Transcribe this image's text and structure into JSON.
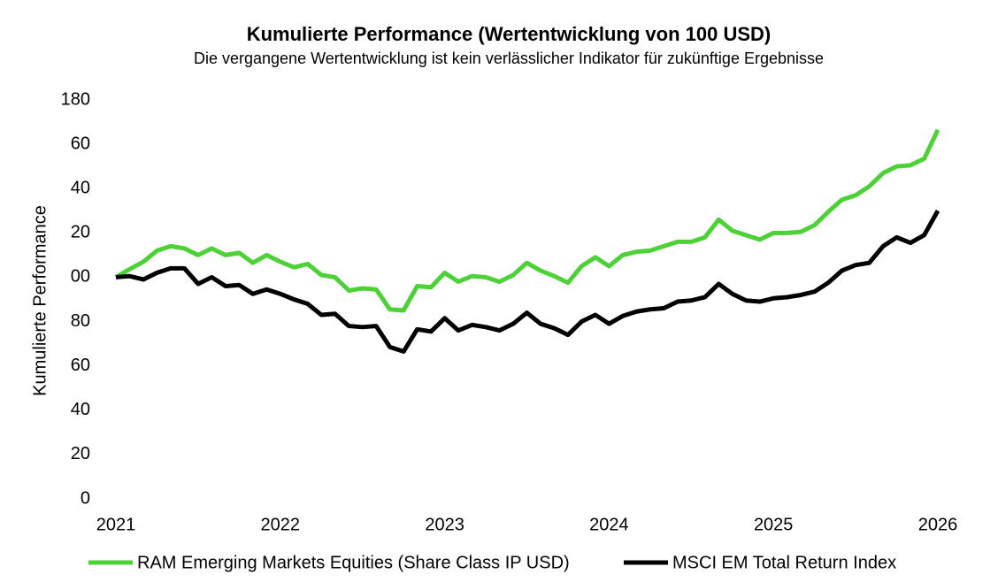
{
  "chart_data": {
    "type": "line",
    "title": "Kumulierte Performance (Wertentwicklung von 100 USD)",
    "subtitle": "Die vergangene Wertentwicklung ist kein verlässlicher Indikator für zukünftige Ergebnisse",
    "y_label": "Kumulierte Performance",
    "x": [
      2021,
      2021.083,
      2021.167,
      2021.25,
      2021.333,
      2021.417,
      2021.5,
      2021.583,
      2021.667,
      2021.75,
      2021.833,
      2021.917,
      2022,
      2022.083,
      2022.167,
      2022.25,
      2022.333,
      2022.417,
      2022.5,
      2022.583,
      2022.667,
      2022.75,
      2022.833,
      2022.917,
      2023,
      2023.083,
      2023.167,
      2023.25,
      2023.333,
      2023.417,
      2023.5,
      2023.583,
      2023.667,
      2023.75,
      2023.833,
      2023.917,
      2024,
      2024.083,
      2024.167,
      2024.25,
      2024.333,
      2024.417,
      2024.5,
      2024.583,
      2024.667,
      2024.75,
      2024.833,
      2024.917,
      2025,
      2025.083,
      2025.167,
      2025.25,
      2025.333,
      2025.417,
      2025.5,
      2025.583,
      2025.667,
      2025.75,
      2025.833,
      2025.917,
      2026
    ],
    "series": [
      {
        "name": "RAM Emerging Markets Equities (Share Class IP USD)",
        "color": "#4cd137",
        "values": [
          100,
          103.6,
          107,
          112,
          114,
          113,
          110,
          113,
          110,
          111,
          106.5,
          110,
          107,
          104.5,
          106,
          101,
          100,
          94,
          95,
          94.5,
          85.5,
          85,
          96,
          95.5,
          102,
          98,
          100.5,
          100,
          98,
          101,
          106.5,
          103,
          100.5,
          97.5,
          105,
          109,
          105,
          110,
          111.5,
          112,
          114,
          116,
          116,
          118,
          126,
          121,
          119,
          117,
          120,
          120,
          120.5,
          123.5,
          129.5,
          135,
          137,
          141,
          147,
          150,
          150.5,
          153.5,
          166.5
        ]
      },
      {
        "name": "MSCI EM Total Return Index",
        "color": "#000000",
        "values": [
          100,
          100.5,
          99,
          102,
          104,
          104,
          97,
          100,
          96,
          96.5,
          92.5,
          94.5,
          92.5,
          90,
          88,
          83,
          83.5,
          78,
          77.5,
          78,
          68.5,
          66.5,
          76.5,
          75.5,
          81.5,
          76,
          78.5,
          77.5,
          76,
          79,
          84,
          79,
          77,
          74,
          80,
          83,
          79,
          82.5,
          84.5,
          85.5,
          86,
          89,
          89.5,
          91,
          97,
          92.5,
          89.5,
          89,
          90.5,
          91,
          92,
          93.5,
          97.5,
          103,
          105.5,
          106.5,
          114,
          118,
          115.5,
          119,
          130
        ]
      }
    ],
    "xlim": [
      2021,
      2026
    ],
    "xticks": [
      2021,
      2022,
      2023,
      2024,
      2025,
      2026
    ],
    "ylim": [
      0,
      180
    ],
    "yticks": [
      0,
      20,
      40,
      60,
      80,
      {
        "value": 100,
        "label": "00"
      },
      {
        "value": 120,
        "label": "20"
      },
      {
        "value": 140,
        "label": "40"
      },
      {
        "value": 160,
        "label": "60"
      },
      180
    ],
    "grid": false
  }
}
